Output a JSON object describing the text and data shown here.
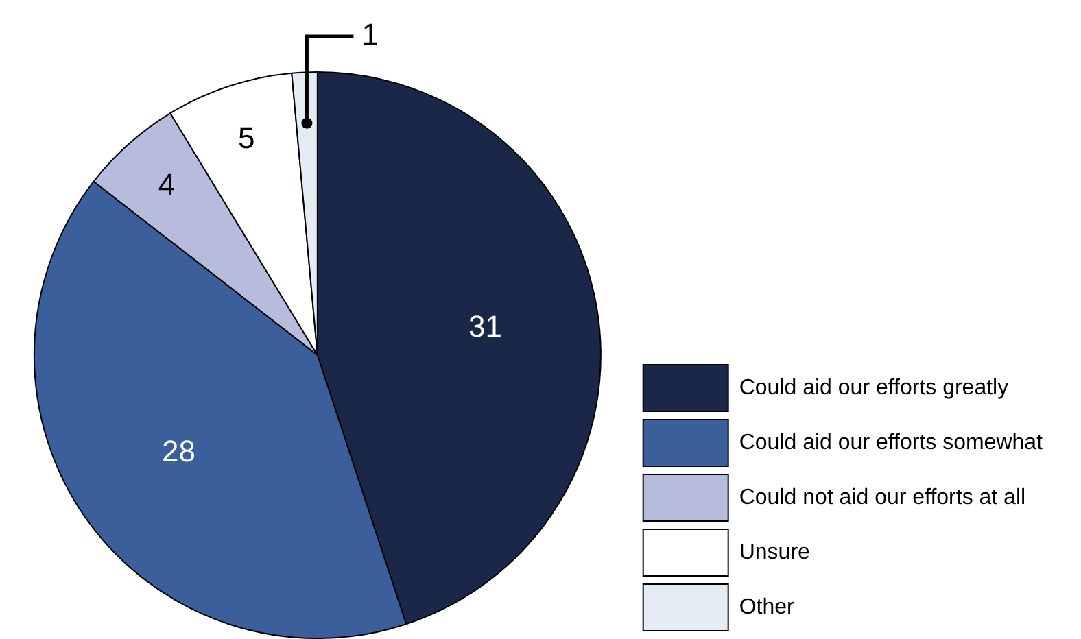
{
  "chart_data": {
    "type": "pie",
    "categories": [
      "Could aid our efforts greatly",
      "Could aid our efforts somewhat",
      "Could not aid our efforts at all",
      "Unsure",
      "Other"
    ],
    "values": [
      31,
      28,
      4,
      5,
      1
    ],
    "colors": [
      "#1a2749",
      "#3a5f9b",
      "#b7bbdc",
      "#ffffff",
      "#e4ebf3"
    ],
    "data_labels": true,
    "legend": "bottom right"
  }
}
